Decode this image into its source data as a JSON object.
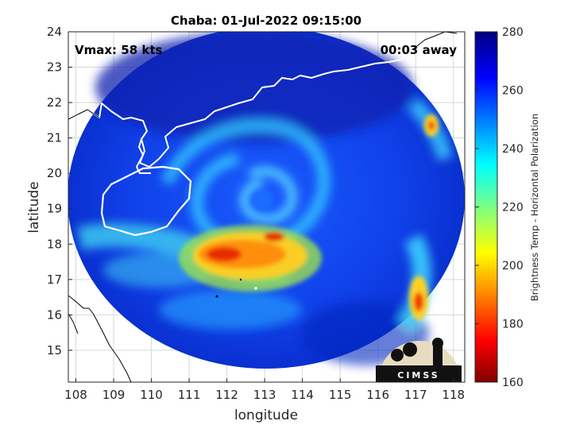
{
  "chart_data": {
    "type": "heatmap",
    "title": "Chaba: 01-Jul-2022 09:15:00",
    "xlabel": "longitude",
    "ylabel": "latitude",
    "xlim": [
      107.8,
      118.3
    ],
    "ylim": [
      14.1,
      24.0
    ],
    "xticks": [
      108,
      109,
      110,
      111,
      112,
      113,
      114,
      115,
      116,
      117,
      118
    ],
    "yticks": [
      15,
      16,
      17,
      18,
      19,
      20,
      21,
      22,
      23,
      24
    ],
    "grid": true,
    "annotations": {
      "vmax": "Vmax: 58 kts",
      "time_away": "00:03 away"
    },
    "colorbar": {
      "label": "Brightness Temp - Horizontal Polarization",
      "range": [
        160,
        280
      ],
      "ticks": [
        160,
        180,
        200,
        220,
        240,
        260,
        280
      ]
    },
    "storm_center": {
      "lon": 112.8,
      "lat": 18.9
    },
    "swath": {
      "center_lon": 112.8,
      "center_lat": 19.2,
      "radius_lon": 5.5,
      "radius_lat": 4.95
    }
  },
  "logo": {
    "text": "CIMSS"
  }
}
